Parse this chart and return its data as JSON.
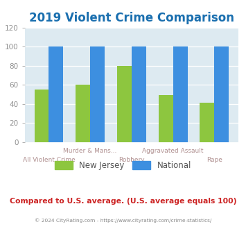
{
  "title": "2019 Violent Crime Comparison",
  "title_color": "#1a6faf",
  "title_fontsize": 12,
  "categories": [
    "All Violent Crime",
    "Murder & Mans...",
    "Robbery",
    "Aggravated Assault",
    "Rape"
  ],
  "nj_values": [
    55,
    60,
    80,
    49,
    41
  ],
  "national_values": [
    100,
    100,
    100,
    100,
    100
  ],
  "nj_color": "#8dc63f",
  "national_color": "#3d8fe0",
  "ylim": [
    0,
    120
  ],
  "yticks": [
    0,
    20,
    40,
    60,
    80,
    100,
    120
  ],
  "plot_bg_color": "#ddeaf1",
  "fig_bg_color": "#ffffff",
  "xlabel_top_color": "#b09090",
  "xlabel_bot_color": "#b09090",
  "tick_color": "#909090",
  "legend_nj": "New Jersey",
  "legend_national": "National",
  "footer_text": "Compared to U.S. average. (U.S. average equals 100)",
  "footer_color": "#cc2222",
  "copyright_text": "© 2024 CityRating.com - https://www.cityrating.com/crime-statistics/",
  "copyright_color": "#888888",
  "bar_width": 0.35
}
